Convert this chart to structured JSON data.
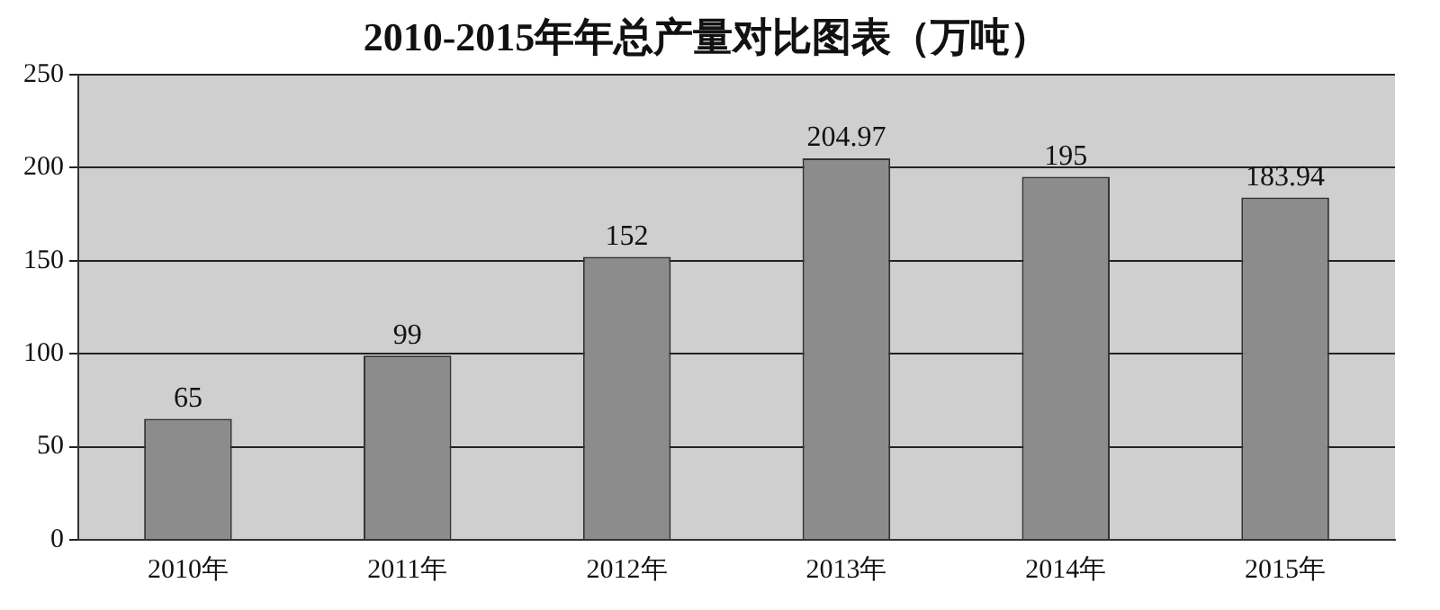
{
  "chart_data": {
    "type": "bar",
    "title": "2010-2015年年总产量对比图表（万吨）",
    "categories": [
      "2010年",
      "2011年",
      "2012年",
      "2013年",
      "2014年",
      "2015年"
    ],
    "values": [
      65,
      99,
      152,
      204.97,
      195,
      183.94
    ],
    "color": "#8c8c8c",
    "ylim": [
      0,
      250
    ],
    "yticks": [
      0,
      50,
      100,
      150,
      200,
      250
    ],
    "grid": "y",
    "data_labels": true
  }
}
